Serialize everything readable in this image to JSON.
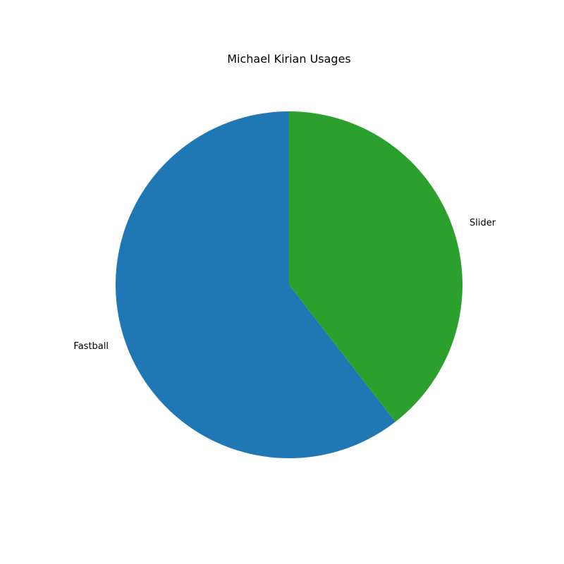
{
  "chart_data": {
    "type": "pie",
    "title": "Michael Kirian Usages",
    "labels": [
      "Fastball",
      "Slider"
    ],
    "values": [
      60.5,
      39.5
    ],
    "colors": [
      "#1f77b4",
      "#2ca02c"
    ],
    "start_angle_deg": 90,
    "direction": "counterclockwise",
    "legend": "none"
  }
}
